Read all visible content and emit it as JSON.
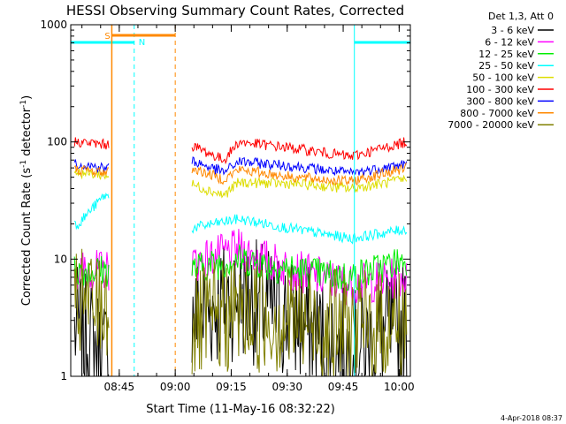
{
  "chart_data": {
    "type": "line",
    "title": "HESSI Observing Summary Count Rates, Corrected",
    "xlabel": "Start Time (11-May-16 08:32:22)",
    "ylabel_main": "Corrected Count Rate (s",
    "ylabel_sup1": "-1",
    "ylabel_mid": " detector",
    "ylabel_sup2": "-1",
    "ylabel_end": ")",
    "y_scale": "log",
    "ylim": [
      1,
      1000
    ],
    "xlim_minutes_after_0832": [
      0,
      91
    ],
    "x_tick_labels": [
      "08:45",
      "09:00",
      "09:15",
      "09:30",
      "09:45",
      "10:00"
    ],
    "x_tick_minutes": [
      13,
      28,
      43,
      58,
      73,
      88
    ],
    "y_tick_labels": [
      "1",
      "10",
      "100",
      "1000"
    ],
    "y_tick_values": [
      1,
      10,
      100,
      1000
    ],
    "legend_title": "Det 1,3, Att 0",
    "legend_placement": "right",
    "gap_minutes": [
      11,
      30
    ],
    "series": [
      {
        "name": "3 - 6 keV",
        "color": "#000000",
        "values": [
          [
            2,
            2.5
          ],
          [
            9,
            1.5
          ],
          [
            31,
            3
          ],
          [
            45,
            5
          ],
          [
            60,
            3
          ],
          [
            75,
            1.5
          ],
          [
            90,
            3
          ]
        ]
      },
      {
        "name": "6 - 12 keV",
        "color": "#ff00ff",
        "values": [
          [
            2,
            8
          ],
          [
            9,
            8
          ],
          [
            31,
            9
          ],
          [
            45,
            12
          ],
          [
            60,
            8
          ],
          [
            75,
            6
          ],
          [
            90,
            7
          ]
        ]
      },
      {
        "name": "12 - 25 keV",
        "color": "#00ee00",
        "values": [
          [
            2,
            8
          ],
          [
            9,
            8
          ],
          [
            31,
            8
          ],
          [
            45,
            10
          ],
          [
            60,
            8
          ],
          [
            75,
            7
          ],
          [
            90,
            10
          ]
        ]
      },
      {
        "name": "25 - 50 keV",
        "color": "#00ffff",
        "values": [
          [
            2,
            20
          ],
          [
            9,
            35
          ],
          [
            31,
            18
          ],
          [
            45,
            22
          ],
          [
            60,
            18
          ],
          [
            75,
            15
          ],
          [
            90,
            18
          ]
        ]
      },
      {
        "name": "50 - 100 keV",
        "color": "#dddd00",
        "values": [
          [
            2,
            55
          ],
          [
            9,
            52
          ],
          [
            31,
            45
          ],
          [
            41,
            35
          ],
          [
            45,
            45
          ],
          [
            60,
            44
          ],
          [
            75,
            40
          ],
          [
            90,
            48
          ]
        ]
      },
      {
        "name": "100 - 300 keV",
        "color": "#ff0000",
        "values": [
          [
            2,
            100
          ],
          [
            9,
            95
          ],
          [
            31,
            98
          ],
          [
            41,
            70
          ],
          [
            45,
            100
          ],
          [
            60,
            88
          ],
          [
            75,
            75
          ],
          [
            90,
            100
          ]
        ]
      },
      {
        "name": "300 - 800 keV",
        "color": "#0000ff",
        "values": [
          [
            2,
            65
          ],
          [
            9,
            60
          ],
          [
            31,
            72
          ],
          [
            41,
            55
          ],
          [
            45,
            68
          ],
          [
            60,
            62
          ],
          [
            75,
            54
          ],
          [
            90,
            65
          ]
        ]
      },
      {
        "name": "800 - 7000 keV",
        "color": "#ff8800",
        "values": [
          [
            2,
            58
          ],
          [
            9,
            55
          ],
          [
            31,
            62
          ],
          [
            41,
            48
          ],
          [
            45,
            58
          ],
          [
            60,
            50
          ],
          [
            75,
            46
          ],
          [
            90,
            60
          ]
        ]
      },
      {
        "name": "7000 - 20000 keV",
        "color": "#808000",
        "values": [
          [
            2,
            4
          ],
          [
            9,
            4
          ],
          [
            31,
            2.5
          ],
          [
            45,
            3.5
          ],
          [
            60,
            3
          ],
          [
            75,
            2.5
          ],
          [
            90,
            3
          ]
        ]
      }
    ],
    "annotations": {
      "saa_flag_label": "S",
      "saa_flag_minutes": [
        11,
        28
      ],
      "night_flag_label": "N",
      "night_flag_minutes": [
        [
          0,
          17
        ],
        [
          76,
          91
        ]
      ]
    }
  },
  "footer_date": "4-Apr-2018 08:37"
}
